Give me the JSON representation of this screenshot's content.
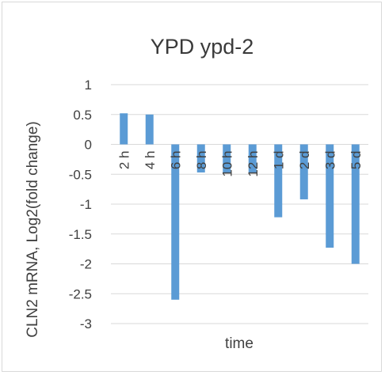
{
  "chart_data": {
    "type": "bar",
    "title": "YPD ypd-2",
    "xlabel": "time",
    "ylabel": "CLN2 mRNA, Log2(fold change)",
    "categories": [
      "2 h",
      "4 h",
      "6 h",
      "8 h",
      "10 h",
      "12 h",
      "1 d",
      "2 d",
      "3 d",
      "5 d"
    ],
    "values": [
      0.52,
      0.5,
      -2.6,
      -0.47,
      -0.47,
      -0.48,
      -1.22,
      -0.92,
      -1.73,
      -2.0
    ],
    "ylim": [
      -3,
      1
    ],
    "yticks": [
      {
        "v": 1,
        "label": "1"
      },
      {
        "v": 0.5,
        "label": "0.5"
      },
      {
        "v": 0,
        "label": "0"
      },
      {
        "v": -0.5,
        "label": "-0.5"
      },
      {
        "v": -1,
        "label": "-1"
      },
      {
        "v": -1.5,
        "label": "-1.5"
      },
      {
        "v": -2,
        "label": "-2"
      },
      {
        "v": -2.5,
        "label": "-2.5"
      },
      {
        "v": -3,
        "label": "-3"
      }
    ],
    "grid": true,
    "legend": "none",
    "bar_color": "#5b9bd5",
    "grid_color": "#d9d9d9"
  }
}
